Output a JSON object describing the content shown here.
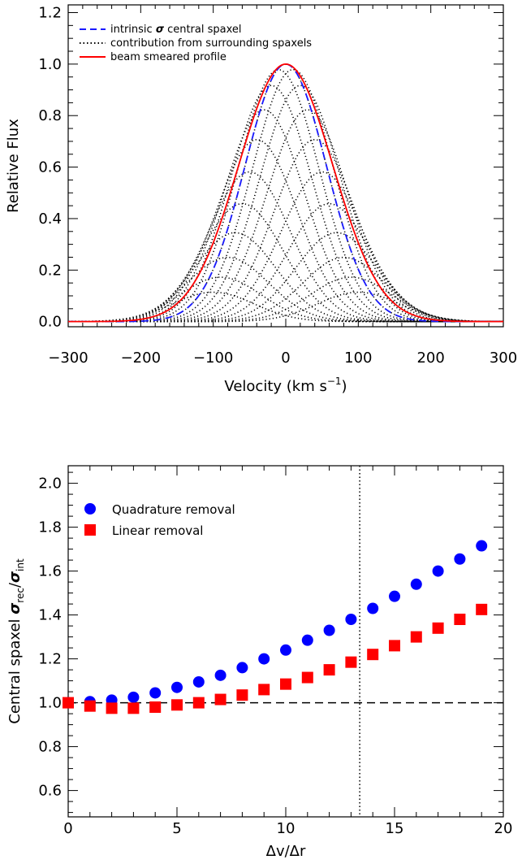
{
  "chart_data": [
    {
      "type": "line",
      "xlabel": "Velocity (km s",
      "xlabel_sup": "−1",
      "xlabel_end": ")",
      "ylabel": "Relative Flux",
      "xlim": [
        -300,
        300
      ],
      "ylim": [
        -0.02,
        1.23
      ],
      "xticks": [
        -300,
        -200,
        -100,
        0,
        100,
        200,
        300
      ],
      "xtick_labels": [
        "−300",
        "−200",
        "−100",
        "0",
        "100",
        "200",
        "300"
      ],
      "yticks": [
        0.0,
        0.2,
        0.4,
        0.6,
        0.8,
        1.0,
        1.2
      ],
      "ytick_labels": [
        "0.0",
        "0.2",
        "0.4",
        "0.6",
        "0.8",
        "1.0",
        "1.2"
      ],
      "legend_position": "top-left",
      "series": [
        {
          "name_prefix": "intrinsic ",
          "name_symbol": "σ",
          "name_suffix": " central spaxel",
          "style": "dashed",
          "color": "#1a1aff",
          "sigma": 56
        },
        {
          "name": "contribution from surrounding spaxels",
          "style": "dotted",
          "color": "#000000",
          "centers": [
            -100,
            -90,
            -80,
            -70,
            -60,
            -50,
            -40,
            -30,
            -20,
            -10,
            0,
            10,
            20,
            30,
            40,
            50,
            60,
            70,
            80,
            90,
            100
          ],
          "sigma": 56,
          "amplitude_width": 48
        },
        {
          "name": "beam smeared profile",
          "style": "solid",
          "color": "#ff0000",
          "sigma": 65
        }
      ]
    },
    {
      "type": "scatter",
      "xlabel": "Δv/Δr",
      "ylabel_main": "Central spaxel ",
      "ylabel_sym": "σ",
      "ylabel_sub1": "rec",
      "ylabel_slash": "/",
      "ylabel_sym2": "σ",
      "ylabel_sub2": "int",
      "xlim": [
        0,
        20
      ],
      "ylim": [
        0.48,
        2.08
      ],
      "xticks": [
        0,
        5,
        10,
        15,
        20
      ],
      "xtick_labels": [
        "0",
        "5",
        "10",
        "15",
        "20"
      ],
      "yticks": [
        0.6,
        0.8,
        1.0,
        1.2,
        1.4,
        1.6,
        1.8,
        2.0
      ],
      "ytick_labels": [
        "0.6",
        "0.8",
        "1.0",
        "1.2",
        "1.4",
        "1.6",
        "1.8",
        "2.0"
      ],
      "reference_line_y": 1.0,
      "vertical_line_x": 13.4,
      "legend_position": "top-left",
      "series": [
        {
          "name": "Quadrature removal",
          "marker": "circle",
          "color": "#0000ff",
          "x": [
            0,
            1,
            2,
            3,
            4,
            5,
            6,
            7,
            8,
            9,
            10,
            11,
            12,
            13,
            14,
            15,
            16,
            17,
            18,
            19
          ],
          "y": [
            1.0,
            1.005,
            1.012,
            1.025,
            1.045,
            1.07,
            1.095,
            1.125,
            1.16,
            1.2,
            1.24,
            1.285,
            1.33,
            1.38,
            1.43,
            1.485,
            1.54,
            1.6,
            1.655,
            1.715
          ]
        },
        {
          "name": "Linear removal",
          "marker": "square",
          "color": "#ff0000",
          "x": [
            0,
            1,
            2,
            3,
            4,
            5,
            6,
            7,
            8,
            9,
            10,
            11,
            12,
            13,
            14,
            15,
            16,
            17,
            18,
            19
          ],
          "y": [
            1.0,
            0.985,
            0.975,
            0.975,
            0.98,
            0.99,
            1.0,
            1.015,
            1.035,
            1.06,
            1.085,
            1.115,
            1.15,
            1.185,
            1.22,
            1.26,
            1.3,
            1.34,
            1.38,
            1.425
          ]
        }
      ]
    }
  ]
}
